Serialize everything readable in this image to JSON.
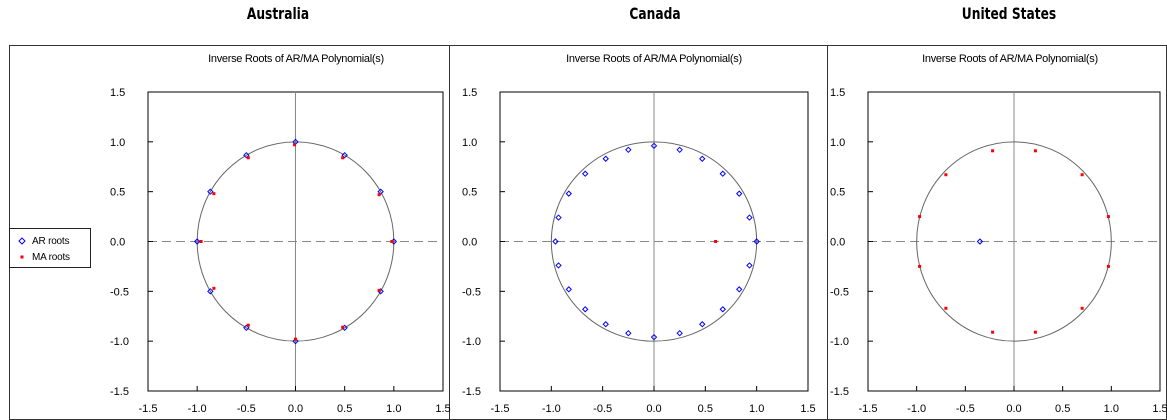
{
  "legend": {
    "ar_label": "AR roots",
    "ma_label": "MA roots",
    "ar_color": "#0000ff",
    "ma_color": "#ff0000"
  },
  "chart_data": [
    {
      "type": "scatter",
      "country": "Australia",
      "title": "Inverse Roots of AR/MA Polynomial(s)",
      "xlim": [
        -1.5,
        1.5
      ],
      "ylim": [
        -1.5,
        1.5
      ],
      "x_ticks": [
        "-1.5",
        "-1.0",
        "-0.5",
        "0.0",
        "0.5",
        "1.0",
        "1.5"
      ],
      "y_ticks": [
        "1.5",
        "1.0",
        "0.5",
        "0.0",
        "-0.5",
        "-1.0",
        "-1.5"
      ],
      "unit_circle": true,
      "series": [
        {
          "name": "AR roots",
          "marker": "diamond",
          "points": [
            [
              0.0,
              1.0
            ],
            [
              0.5,
              0.866
            ],
            [
              0.866,
              0.5
            ],
            [
              1.0,
              0.0
            ],
            [
              0.866,
              -0.5
            ],
            [
              0.5,
              -0.866
            ],
            [
              0.0,
              -1.0
            ],
            [
              -0.5,
              -0.866
            ],
            [
              -0.866,
              -0.5
            ],
            [
              -1.0,
              0.0
            ],
            [
              -0.866,
              0.5
            ],
            [
              -0.5,
              0.866
            ]
          ]
        },
        {
          "name": "MA roots",
          "marker": "square",
          "points": [
            [
              -0.01,
              0.97
            ],
            [
              0.48,
              0.84
            ],
            [
              0.85,
              0.47
            ],
            [
              0.98,
              0.0
            ],
            [
              0.85,
              -0.49
            ],
            [
              0.48,
              -0.86
            ],
            [
              0.0,
              -0.98
            ],
            [
              -0.48,
              -0.84
            ],
            [
              -0.83,
              -0.47
            ],
            [
              -0.96,
              0.0
            ],
            [
              -0.83,
              0.48
            ],
            [
              -0.48,
              0.84
            ]
          ]
        }
      ]
    },
    {
      "type": "scatter",
      "country": "Canada",
      "title": "Inverse Roots of AR/MA Polynomial(s)",
      "xlim": [
        -1.5,
        1.5
      ],
      "ylim": [
        -1.5,
        1.5
      ],
      "x_ticks": [
        "-1.5",
        "-1.0",
        "-0.5",
        "0.0",
        "0.5",
        "1.0",
        "1.5"
      ],
      "y_ticks": [
        "1.5",
        "1.0",
        "0.5",
        "0.0",
        "-0.5",
        "-1.0",
        "-1.5"
      ],
      "unit_circle": true,
      "series": [
        {
          "name": "AR roots",
          "marker": "diamond",
          "points": [
            [
              0.0,
              0.96
            ],
            [
              0.25,
              0.92
            ],
            [
              -0.25,
              0.92
            ],
            [
              0.47,
              0.83
            ],
            [
              -0.47,
              0.83
            ],
            [
              0.67,
              0.68
            ],
            [
              -0.67,
              0.68
            ],
            [
              0.83,
              0.48
            ],
            [
              -0.83,
              0.48
            ],
            [
              0.93,
              0.24
            ],
            [
              -0.93,
              0.24
            ],
            [
              1.0,
              0.0
            ],
            [
              -0.96,
              0.0
            ],
            [
              0.93,
              -0.24
            ],
            [
              -0.93,
              -0.24
            ],
            [
              0.83,
              -0.48
            ],
            [
              -0.83,
              -0.48
            ],
            [
              0.67,
              -0.68
            ],
            [
              -0.67,
              -0.68
            ],
            [
              0.47,
              -0.83
            ],
            [
              -0.47,
              -0.83
            ],
            [
              0.25,
              -0.92
            ],
            [
              -0.25,
              -0.92
            ],
            [
              0.0,
              -0.96
            ]
          ]
        },
        {
          "name": "MA roots",
          "marker": "square",
          "points": [
            [
              0.6,
              0.0
            ]
          ]
        }
      ]
    },
    {
      "type": "scatter",
      "country": "United States",
      "title": "Inverse Roots of AR/MA Polynomial(s)",
      "xlim": [
        -1.5,
        1.5
      ],
      "ylim": [
        -1.5,
        1.5
      ],
      "x_ticks": [
        "-1.5",
        "-1.0",
        "-0.5",
        "0.0",
        "0.5",
        "1.0",
        "1.5"
      ],
      "y_ticks": [
        "1.5",
        "1.0",
        "0.5",
        "0.0",
        "-0.5",
        "-1.0",
        "-1.5"
      ],
      "unit_circle": true,
      "series": [
        {
          "name": "AR roots",
          "marker": "diamond",
          "points": [
            [
              -0.35,
              0.0
            ]
          ]
        },
        {
          "name": "MA roots",
          "marker": "square",
          "points": [
            [
              -0.97,
              0.25
            ],
            [
              -0.7,
              0.67
            ],
            [
              -0.22,
              0.91
            ],
            [
              0.22,
              0.91
            ],
            [
              0.7,
              0.67
            ],
            [
              0.97,
              0.25
            ],
            [
              0.97,
              -0.25
            ],
            [
              0.7,
              -0.67
            ],
            [
              0.22,
              -0.91
            ],
            [
              -0.22,
              -0.91
            ],
            [
              -0.7,
              -0.67
            ],
            [
              -0.97,
              -0.25
            ]
          ]
        }
      ]
    }
  ]
}
